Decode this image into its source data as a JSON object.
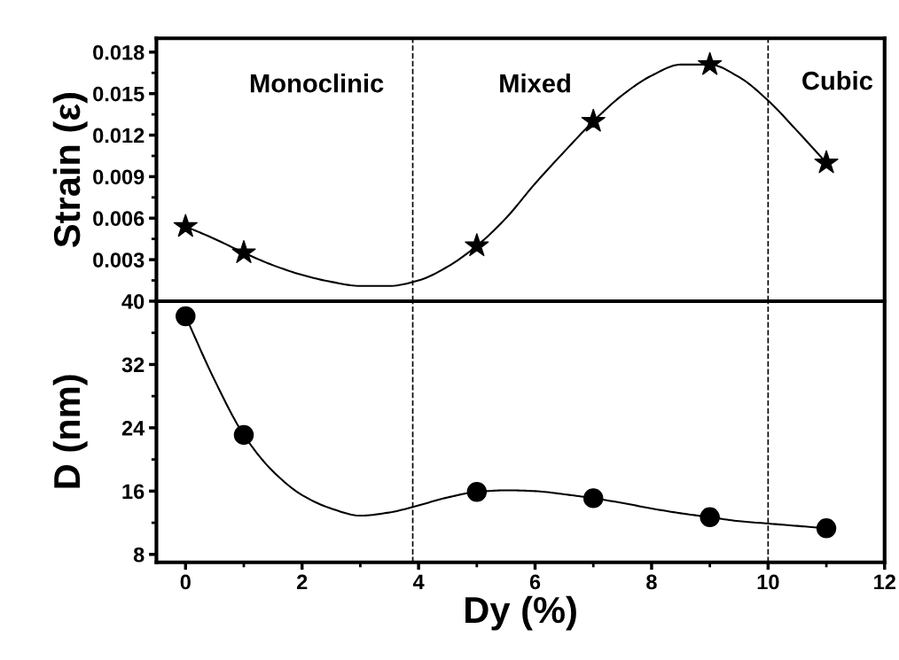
{
  "chart_data": [
    {
      "type": "line",
      "ylabel": "Strain (ε)",
      "xlim": [
        -0.5,
        12
      ],
      "ylim": [
        0,
        0.019
      ],
      "yticks": [
        0.003,
        0.006,
        0.009,
        0.012,
        0.015,
        0.018
      ],
      "tick_labels": "y",
      "grid": false,
      "series": [
        {
          "type": "scatter",
          "color": "#000000",
          "marker": "star",
          "x": [
            0,
            1,
            5,
            7,
            9,
            11
          ],
          "values": [
            0.0054,
            0.0035,
            0.004,
            0.013,
            0.0171,
            0.01
          ]
        },
        {
          "color": "#000000",
          "line_style": "solid",
          "x": [
            0,
            0.5,
            1,
            1.5,
            2,
            2.5,
            3,
            3.5,
            4,
            4.5,
            5,
            5.5,
            6,
            6.5,
            7,
            7.5,
            8,
            8.5,
            9,
            9.5,
            10,
            10.5,
            11
          ],
          "values": [
            0.0054,
            0.0045,
            0.0035,
            0.0026,
            0.0019,
            0.0014,
            0.0011,
            0.0011,
            0.0015,
            0.0025,
            0.004,
            0.006,
            0.0085,
            0.0108,
            0.013,
            0.0149,
            0.0163,
            0.0171,
            0.0171,
            0.0162,
            0.0145,
            0.0123,
            0.01
          ]
        }
      ],
      "ref_lines": [
        {
          "axis": "x",
          "value": 3.9,
          "line_style": "dashed",
          "color": "#000000"
        },
        {
          "axis": "x",
          "value": 10,
          "line_style": "dashed",
          "color": "#000000"
        }
      ],
      "annotations": [
        "Monoclinic",
        "Mixed",
        "Cubic"
      ]
    },
    {
      "type": "line",
      "xlabel": "Dy (%)",
      "ylabel": "D (nm)",
      "xlim": [
        -0.5,
        12
      ],
      "ylim": [
        7,
        40
      ],
      "xticks": [
        0,
        2,
        4,
        6,
        8,
        10,
        12
      ],
      "yticks": [
        8,
        16,
        24,
        32,
        40
      ],
      "grid": false,
      "series": [
        {
          "type": "scatter",
          "color": "#000000",
          "marker": "circle",
          "x": [
            0,
            1,
            5,
            7,
            9,
            11
          ],
          "values": [
            38.1,
            23.1,
            15.9,
            15.1,
            12.7,
            11.3
          ]
        },
        {
          "color": "#000000",
          "line_style": "solid",
          "x": [
            0,
            0.5,
            1,
            1.5,
            2,
            2.5,
            3,
            3.5,
            4,
            4.5,
            5,
            5.5,
            6,
            6.5,
            7,
            7.5,
            8,
            8.5,
            9,
            9.5,
            10,
            10.5,
            11
          ],
          "values": [
            38.1,
            30,
            23.1,
            18.5,
            15.5,
            13.8,
            12.9,
            13.3,
            14.2,
            15.2,
            15.9,
            16.1,
            16.0,
            15.6,
            15.1,
            14.5,
            13.8,
            13.2,
            12.7,
            12.2,
            11.9,
            11.6,
            11.3
          ]
        }
      ],
      "ref_lines": [
        {
          "axis": "x",
          "value": 3.9,
          "line_style": "dashed",
          "color": "#000000"
        },
        {
          "axis": "x",
          "value": 10,
          "line_style": "dashed",
          "color": "#000000"
        }
      ]
    }
  ]
}
